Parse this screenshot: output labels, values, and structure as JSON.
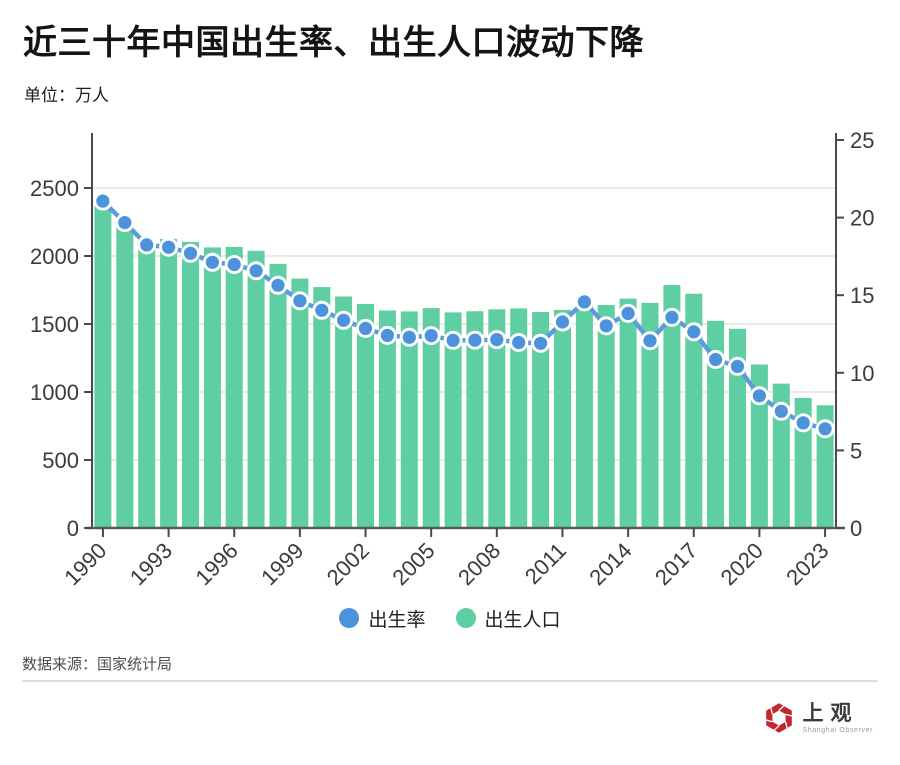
{
  "title": "近三十年中国出生率、出生人口波动下降",
  "unit_label": "单位：万人",
  "legend": {
    "rate_label": "出生率",
    "births_label": "出生人口"
  },
  "source": "数据来源：国家统计局",
  "logo": {
    "name_cn": "上观",
    "name_en": "Shanghai Observer"
  },
  "colors": {
    "bar": "#60CEA3",
    "line": "#5C9CD9",
    "dot_fill": "#4D93DB",
    "dot_ring": "#ffffff",
    "axis": "#4a4a4a",
    "grid": "#e3e3e3",
    "tick_label": "#3b3b3b",
    "logo_red": "#C2262E"
  },
  "chart_data": {
    "type": "combo: bar + line",
    "title": "近三十年中国出生率、出生人口波动下降",
    "subtitle_unit": "单位：万人",
    "categories": [
      1990,
      1991,
      1992,
      1993,
      1994,
      1995,
      1996,
      1997,
      1998,
      1999,
      2000,
      2001,
      2002,
      2003,
      2004,
      2005,
      2006,
      2007,
      2008,
      2009,
      2010,
      2011,
      2012,
      2013,
      2014,
      2015,
      2016,
      2017,
      2018,
      2019,
      2020,
      2021,
      2022,
      2023
    ],
    "series": [
      {
        "name": "出生人口",
        "type": "bar",
        "axis": "left",
        "unit": "万人",
        "values": [
          2391,
          2258,
          2119,
          2126,
          2104,
          2063,
          2067,
          2038,
          1942,
          1834,
          1771,
          1702,
          1647,
          1599,
          1593,
          1617,
          1585,
          1594,
          1608,
          1615,
          1588,
          1604,
          1635,
          1640,
          1687,
          1655,
          1786,
          1723,
          1523,
          1465,
          1202,
          1062,
          956,
          902
        ]
      },
      {
        "name": "出生率",
        "type": "line",
        "axis": "right",
        "unit": "‰",
        "values": [
          21.06,
          19.68,
          18.24,
          18.09,
          17.7,
          17.12,
          16.98,
          16.57,
          15.64,
          14.64,
          14.03,
          13.38,
          12.86,
          12.41,
          12.29,
          12.4,
          12.09,
          12.1,
          12.14,
          11.95,
          11.9,
          13.27,
          14.57,
          13.03,
          13.83,
          12.07,
          13.57,
          12.64,
          10.86,
          10.41,
          8.52,
          7.52,
          6.77,
          6.39
        ]
      }
    ],
    "left_axis": {
      "ticks": [
        0,
        500,
        1000,
        1500,
        2000,
        2500
      ],
      "range": [
        0,
        2500
      ]
    },
    "right_axis": {
      "ticks": [
        0,
        5,
        10,
        15,
        20,
        25
      ],
      "range": [
        0,
        25
      ]
    },
    "x_axis": {
      "labeled_ticks": [
        "1990",
        "1993",
        "1996",
        "1999",
        "2002",
        "2005",
        "2008",
        "2011",
        "2014",
        "2017",
        "2020",
        "2023"
      ],
      "label_interval_years": 3
    },
    "grid": true,
    "legend_position": "bottom"
  }
}
